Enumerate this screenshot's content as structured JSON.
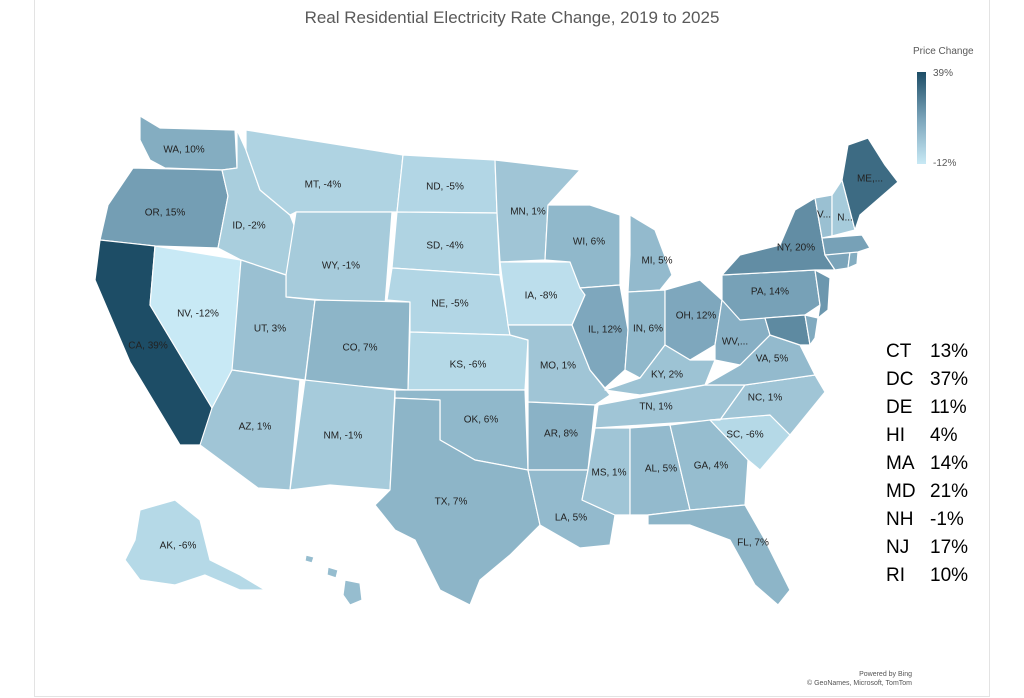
{
  "title": "Real Residential Electricity Rate Change, 2019 to 2025",
  "legend": {
    "title": "Price Change",
    "max_label": "39%",
    "min_label": "-12%",
    "color_max": "#1d4d66",
    "color_mid": "#79a3b9",
    "color_min": "#c8e9f5"
  },
  "states": [
    {
      "abbr": "WA",
      "label": "WA, 10%",
      "value": 10
    },
    {
      "abbr": "OR",
      "label": "OR, 15%",
      "value": 15
    },
    {
      "abbr": "CA",
      "label": "CA, 39%",
      "value": 39
    },
    {
      "abbr": "NV",
      "label": "NV, -12%",
      "value": -12
    },
    {
      "abbr": "ID",
      "label": "ID, -2%",
      "value": -2
    },
    {
      "abbr": "MT",
      "label": "MT, -4%",
      "value": -4
    },
    {
      "abbr": "WY",
      "label": "WY, -1%",
      "value": -1
    },
    {
      "abbr": "UT",
      "label": "UT, 3%",
      "value": 3
    },
    {
      "abbr": "AZ",
      "label": "AZ, 1%",
      "value": 1
    },
    {
      "abbr": "CO",
      "label": "CO, 7%",
      "value": 7
    },
    {
      "abbr": "NM",
      "label": "NM, -1%",
      "value": -1
    },
    {
      "abbr": "ND",
      "label": "ND, -5%",
      "value": -5
    },
    {
      "abbr": "SD",
      "label": "SD, -4%",
      "value": -4
    },
    {
      "abbr": "NE",
      "label": "NE, -5%",
      "value": -5
    },
    {
      "abbr": "KS",
      "label": "KS, -6%",
      "value": -6
    },
    {
      "abbr": "OK",
      "label": "OK, 6%",
      "value": 6
    },
    {
      "abbr": "TX",
      "label": "TX, 7%",
      "value": 7
    },
    {
      "abbr": "MN",
      "label": "MN, 1%",
      "value": 1
    },
    {
      "abbr": "IA",
      "label": "IA, -8%",
      "value": -8
    },
    {
      "abbr": "MO",
      "label": "MO, 1%",
      "value": 1
    },
    {
      "abbr": "AR",
      "label": "AR, 8%",
      "value": 8
    },
    {
      "abbr": "LA",
      "label": "LA, 5%",
      "value": 5
    },
    {
      "abbr": "WI",
      "label": "WI, 6%",
      "value": 6
    },
    {
      "abbr": "IL",
      "label": "IL, 12%",
      "value": 12
    },
    {
      "abbr": "MI",
      "label": "MI, 5%",
      "value": 5
    },
    {
      "abbr": "IN",
      "label": "IN, 6%",
      "value": 6
    },
    {
      "abbr": "OH",
      "label": "OH, 12%",
      "value": 12
    },
    {
      "abbr": "KY",
      "label": "KY, 2%",
      "value": 2
    },
    {
      "abbr": "TN",
      "label": "TN, 1%",
      "value": 1
    },
    {
      "abbr": "MS",
      "label": "MS, 1%",
      "value": 1
    },
    {
      "abbr": "AL",
      "label": "AL, 5%",
      "value": 5
    },
    {
      "abbr": "GA",
      "label": "GA, 4%",
      "value": 4
    },
    {
      "abbr": "FL",
      "label": "FL, 7%",
      "value": 7
    },
    {
      "abbr": "SC",
      "label": "SC, -6%",
      "value": -6
    },
    {
      "abbr": "NC",
      "label": "NC, 1%",
      "value": 1
    },
    {
      "abbr": "VA",
      "label": "VA, 5%",
      "value": 5
    },
    {
      "abbr": "WV",
      "label": "WV,...",
      "value": null
    },
    {
      "abbr": "PA",
      "label": "PA, 14%",
      "value": 14
    },
    {
      "abbr": "NY",
      "label": "NY, 20%",
      "value": 20
    },
    {
      "abbr": "VT",
      "label": "V...",
      "value": null
    },
    {
      "abbr": "NH",
      "label": "N...",
      "value": -1
    },
    {
      "abbr": "ME",
      "label": "ME,...",
      "value": null
    },
    {
      "abbr": "AK",
      "label": "AK, -6%",
      "value": -6
    }
  ],
  "side_table": [
    {
      "abbr": "CT",
      "value": "13%"
    },
    {
      "abbr": "DC",
      "value": "37%"
    },
    {
      "abbr": "DE",
      "value": "11%"
    },
    {
      "abbr": "HI",
      "value": "4%"
    },
    {
      "abbr": "MA",
      "value": "14%"
    },
    {
      "abbr": "MD",
      "value": "21%"
    },
    {
      "abbr": "NH",
      "value": "-1%"
    },
    {
      "abbr": "NJ",
      "value": "17%"
    },
    {
      "abbr": "RI",
      "value": "10%"
    }
  ],
  "credit": {
    "line1": "Powered by Bing",
    "line2": "© GeoNames, Microsoft, TomTom"
  }
}
